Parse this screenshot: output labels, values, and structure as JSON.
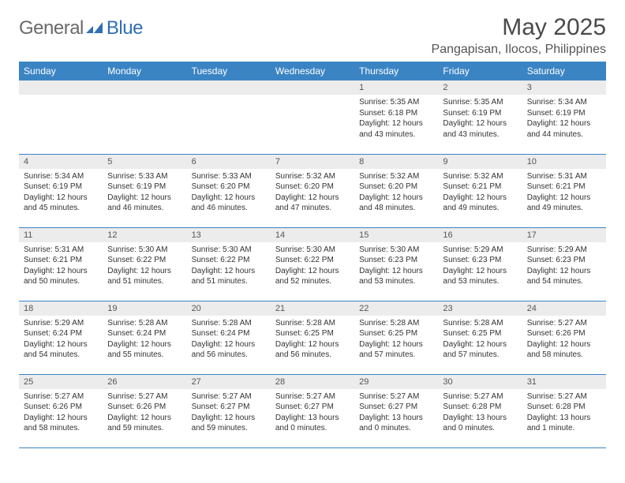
{
  "brand": {
    "general": "General",
    "blue": "Blue"
  },
  "title": "May 2025",
  "location": "Pangapisan, Ilocos, Philippines",
  "colors": {
    "header_bg": "#3b84c4",
    "header_text": "#ffffff",
    "daybar_bg": "#ececec",
    "border": "#3b84c4",
    "brand_gray": "#6a6a6a",
    "brand_blue": "#2f6fb3"
  },
  "weekdays": [
    "Sunday",
    "Monday",
    "Tuesday",
    "Wednesday",
    "Thursday",
    "Friday",
    "Saturday"
  ],
  "weeks": [
    [
      {
        "n": "",
        "sr": "",
        "ss": "",
        "dl": ""
      },
      {
        "n": "",
        "sr": "",
        "ss": "",
        "dl": ""
      },
      {
        "n": "",
        "sr": "",
        "ss": "",
        "dl": ""
      },
      {
        "n": "",
        "sr": "",
        "ss": "",
        "dl": ""
      },
      {
        "n": "1",
        "sr": "Sunrise: 5:35 AM",
        "ss": "Sunset: 6:18 PM",
        "dl": "Daylight: 12 hours and 43 minutes."
      },
      {
        "n": "2",
        "sr": "Sunrise: 5:35 AM",
        "ss": "Sunset: 6:19 PM",
        "dl": "Daylight: 12 hours and 43 minutes."
      },
      {
        "n": "3",
        "sr": "Sunrise: 5:34 AM",
        "ss": "Sunset: 6:19 PM",
        "dl": "Daylight: 12 hours and 44 minutes."
      }
    ],
    [
      {
        "n": "4",
        "sr": "Sunrise: 5:34 AM",
        "ss": "Sunset: 6:19 PM",
        "dl": "Daylight: 12 hours and 45 minutes."
      },
      {
        "n": "5",
        "sr": "Sunrise: 5:33 AM",
        "ss": "Sunset: 6:19 PM",
        "dl": "Daylight: 12 hours and 46 minutes."
      },
      {
        "n": "6",
        "sr": "Sunrise: 5:33 AM",
        "ss": "Sunset: 6:20 PM",
        "dl": "Daylight: 12 hours and 46 minutes."
      },
      {
        "n": "7",
        "sr": "Sunrise: 5:32 AM",
        "ss": "Sunset: 6:20 PM",
        "dl": "Daylight: 12 hours and 47 minutes."
      },
      {
        "n": "8",
        "sr": "Sunrise: 5:32 AM",
        "ss": "Sunset: 6:20 PM",
        "dl": "Daylight: 12 hours and 48 minutes."
      },
      {
        "n": "9",
        "sr": "Sunrise: 5:32 AM",
        "ss": "Sunset: 6:21 PM",
        "dl": "Daylight: 12 hours and 49 minutes."
      },
      {
        "n": "10",
        "sr": "Sunrise: 5:31 AM",
        "ss": "Sunset: 6:21 PM",
        "dl": "Daylight: 12 hours and 49 minutes."
      }
    ],
    [
      {
        "n": "11",
        "sr": "Sunrise: 5:31 AM",
        "ss": "Sunset: 6:21 PM",
        "dl": "Daylight: 12 hours and 50 minutes."
      },
      {
        "n": "12",
        "sr": "Sunrise: 5:30 AM",
        "ss": "Sunset: 6:22 PM",
        "dl": "Daylight: 12 hours and 51 minutes."
      },
      {
        "n": "13",
        "sr": "Sunrise: 5:30 AM",
        "ss": "Sunset: 6:22 PM",
        "dl": "Daylight: 12 hours and 51 minutes."
      },
      {
        "n": "14",
        "sr": "Sunrise: 5:30 AM",
        "ss": "Sunset: 6:22 PM",
        "dl": "Daylight: 12 hours and 52 minutes."
      },
      {
        "n": "15",
        "sr": "Sunrise: 5:30 AM",
        "ss": "Sunset: 6:23 PM",
        "dl": "Daylight: 12 hours and 53 minutes."
      },
      {
        "n": "16",
        "sr": "Sunrise: 5:29 AM",
        "ss": "Sunset: 6:23 PM",
        "dl": "Daylight: 12 hours and 53 minutes."
      },
      {
        "n": "17",
        "sr": "Sunrise: 5:29 AM",
        "ss": "Sunset: 6:23 PM",
        "dl": "Daylight: 12 hours and 54 minutes."
      }
    ],
    [
      {
        "n": "18",
        "sr": "Sunrise: 5:29 AM",
        "ss": "Sunset: 6:24 PM",
        "dl": "Daylight: 12 hours and 54 minutes."
      },
      {
        "n": "19",
        "sr": "Sunrise: 5:28 AM",
        "ss": "Sunset: 6:24 PM",
        "dl": "Daylight: 12 hours and 55 minutes."
      },
      {
        "n": "20",
        "sr": "Sunrise: 5:28 AM",
        "ss": "Sunset: 6:24 PM",
        "dl": "Daylight: 12 hours and 56 minutes."
      },
      {
        "n": "21",
        "sr": "Sunrise: 5:28 AM",
        "ss": "Sunset: 6:25 PM",
        "dl": "Daylight: 12 hours and 56 minutes."
      },
      {
        "n": "22",
        "sr": "Sunrise: 5:28 AM",
        "ss": "Sunset: 6:25 PM",
        "dl": "Daylight: 12 hours and 57 minutes."
      },
      {
        "n": "23",
        "sr": "Sunrise: 5:28 AM",
        "ss": "Sunset: 6:25 PM",
        "dl": "Daylight: 12 hours and 57 minutes."
      },
      {
        "n": "24",
        "sr": "Sunrise: 5:27 AM",
        "ss": "Sunset: 6:26 PM",
        "dl": "Daylight: 12 hours and 58 minutes."
      }
    ],
    [
      {
        "n": "25",
        "sr": "Sunrise: 5:27 AM",
        "ss": "Sunset: 6:26 PM",
        "dl": "Daylight: 12 hours and 58 minutes."
      },
      {
        "n": "26",
        "sr": "Sunrise: 5:27 AM",
        "ss": "Sunset: 6:26 PM",
        "dl": "Daylight: 12 hours and 59 minutes."
      },
      {
        "n": "27",
        "sr": "Sunrise: 5:27 AM",
        "ss": "Sunset: 6:27 PM",
        "dl": "Daylight: 12 hours and 59 minutes."
      },
      {
        "n": "28",
        "sr": "Sunrise: 5:27 AM",
        "ss": "Sunset: 6:27 PM",
        "dl": "Daylight: 13 hours and 0 minutes."
      },
      {
        "n": "29",
        "sr": "Sunrise: 5:27 AM",
        "ss": "Sunset: 6:27 PM",
        "dl": "Daylight: 13 hours and 0 minutes."
      },
      {
        "n": "30",
        "sr": "Sunrise: 5:27 AM",
        "ss": "Sunset: 6:28 PM",
        "dl": "Daylight: 13 hours and 0 minutes."
      },
      {
        "n": "31",
        "sr": "Sunrise: 5:27 AM",
        "ss": "Sunset: 6:28 PM",
        "dl": "Daylight: 13 hours and 1 minute."
      }
    ]
  ]
}
